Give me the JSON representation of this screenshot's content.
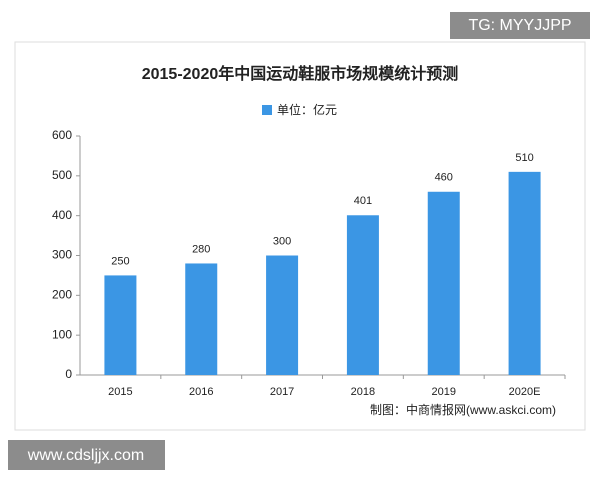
{
  "chart_data": {
    "type": "bar",
    "title": "2015-2020年中国运动鞋服市场规模统计预测",
    "categories": [
      "2015",
      "2016",
      "2017",
      "2018",
      "2019",
      "2020E"
    ],
    "series": [
      {
        "name": "单位：亿元",
        "color": "#3b96e4",
        "values": [
          250,
          280,
          300,
          401,
          460,
          510
        ]
      }
    ],
    "ylim": [
      0,
      600
    ],
    "yticks": [
      0,
      100,
      200,
      300,
      400,
      500,
      600
    ],
    "grid": false,
    "legend": "top",
    "source": "制图：中商情报网(www.askci.com)"
  },
  "overlays": [
    "TG: MYYJJPP",
    "www.cdsljjx.com"
  ]
}
